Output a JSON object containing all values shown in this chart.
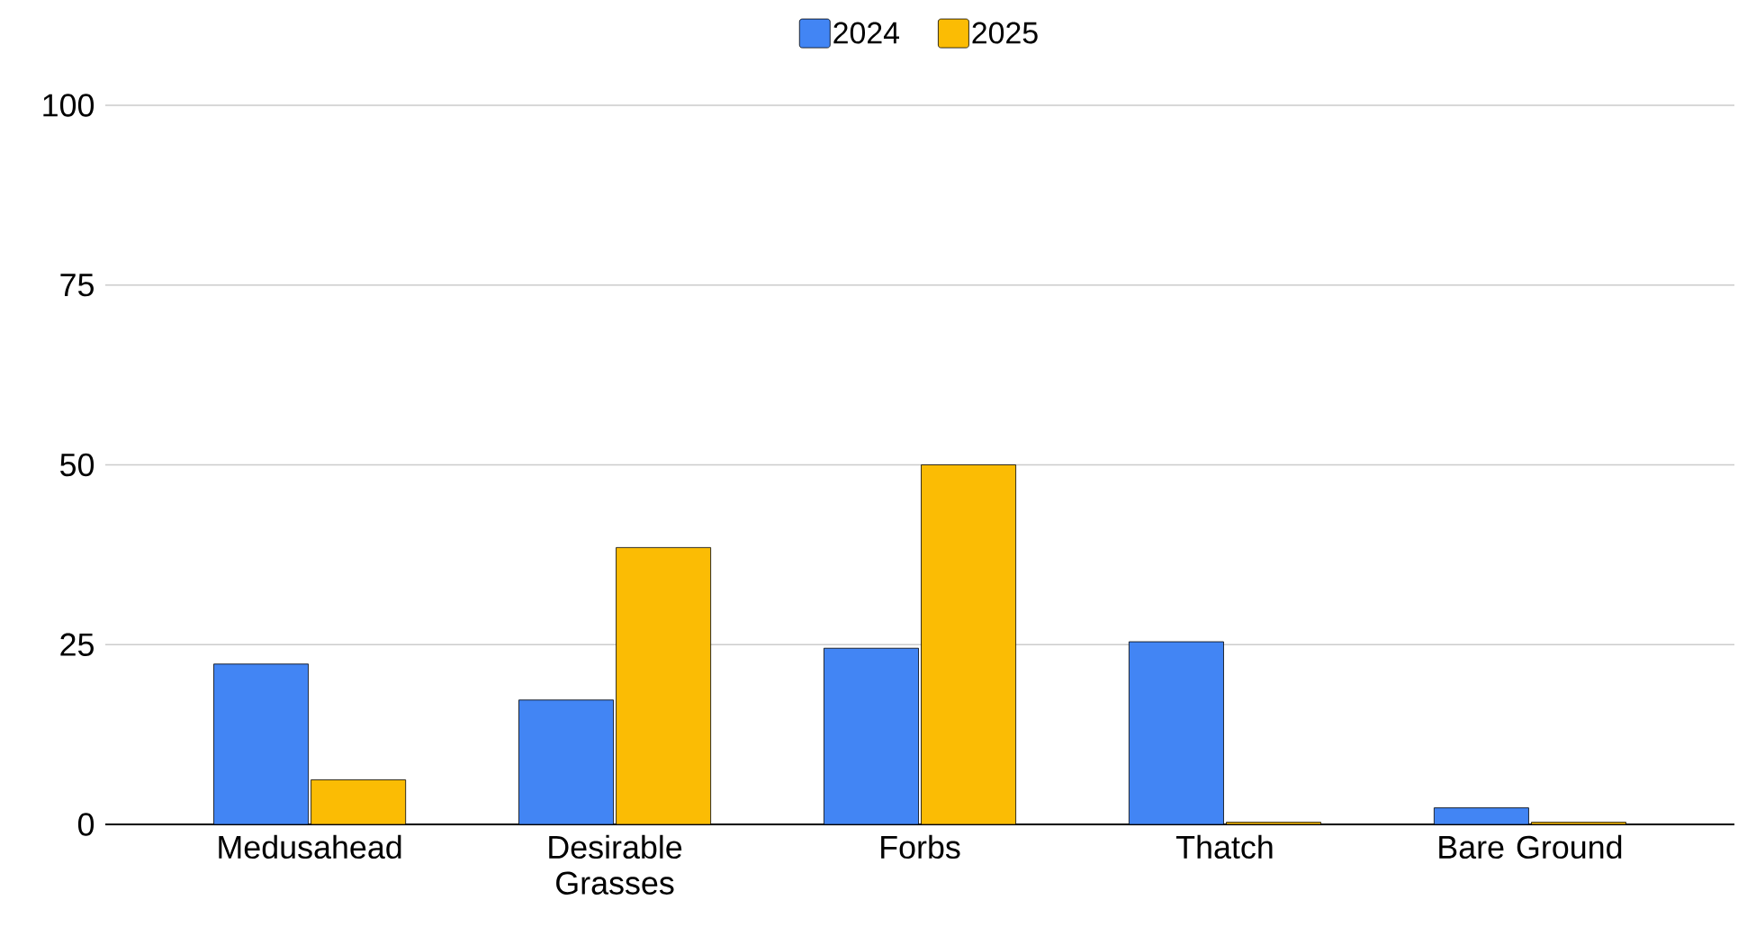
{
  "chart_data": {
    "type": "bar",
    "categories": [
      "Medusahead",
      "Desirable Grasses",
      "Forbs",
      "Thatch",
      "Bare Ground"
    ],
    "series": [
      {
        "name": "2024",
        "color": "#4285f4",
        "values": [
          22.3,
          17.3,
          24.5,
          25.4,
          2.3
        ]
      },
      {
        "name": "2025",
        "color": "#fbbc04",
        "values": [
          6.2,
          38.5,
          50,
          0.3,
          0.3
        ]
      }
    ],
    "ylim": [
      0,
      100
    ],
    "yticks": [
      0,
      25,
      50,
      75,
      100
    ],
    "grid": "y",
    "legend": "top"
  }
}
